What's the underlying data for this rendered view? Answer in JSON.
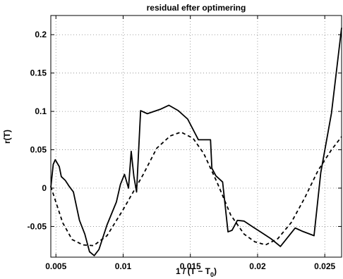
{
  "chart_data": {
    "type": "line",
    "title": "residual efter optimering",
    "xlabel": "1 / (T − T",
    "xlabel_sub": "0",
    "xlabel_end": ")",
    "ylabel": "r(T)",
    "xlim": [
      0.00462,
      0.02625
    ],
    "ylim": [
      -0.09,
      0.225
    ],
    "grid": true,
    "x_ticks": [
      {
        "value": 0.005,
        "label": "0.005"
      },
      {
        "value": 0.01,
        "label": "0.01"
      },
      {
        "value": 0.015,
        "label": "0.015"
      },
      {
        "value": 0.02,
        "label": "0.02"
      },
      {
        "value": 0.025,
        "label": "0.025"
      }
    ],
    "y_ticks": [
      {
        "value": -0.05,
        "label": "-0.05"
      },
      {
        "value": 0,
        "label": "0"
      },
      {
        "value": 0.05,
        "label": "0.05"
      },
      {
        "value": 0.1,
        "label": "0.1"
      },
      {
        "value": 0.15,
        "label": "0.15"
      },
      {
        "value": 0.2,
        "label": "0.2"
      }
    ],
    "series": [
      {
        "style": "solid",
        "color": "#000000",
        "points": [
          [
            0.00462,
            0.001
          ],
          [
            0.0048,
            0.031
          ],
          [
            0.00495,
            0.037
          ],
          [
            0.00525,
            0.028
          ],
          [
            0.0054,
            0.015
          ],
          [
            0.0057,
            0.01
          ],
          [
            0.006,
            0.002
          ],
          [
            0.0063,
            -0.005
          ],
          [
            0.00675,
            -0.042
          ],
          [
            0.00715,
            -0.06
          ],
          [
            0.0075,
            -0.083
          ],
          [
            0.00785,
            -0.088
          ],
          [
            0.0082,
            -0.08
          ],
          [
            0.0088,
            -0.048
          ],
          [
            0.0095,
            -0.018
          ],
          [
            0.0098,
            0.005
          ],
          [
            0.0101,
            0.018
          ],
          [
            0.0104,
            0.0
          ],
          [
            0.0106,
            0.048
          ],
          [
            0.0108,
            0.015
          ],
          [
            0.011,
            -0.005
          ],
          [
            0.0113,
            0.101
          ],
          [
            0.0118,
            0.097
          ],
          [
            0.0128,
            0.103
          ],
          [
            0.0134,
            0.108
          ],
          [
            0.0141,
            0.101
          ],
          [
            0.0148,
            0.09
          ],
          [
            0.0156,
            0.063
          ],
          [
            0.0165,
            0.063
          ],
          [
            0.0166,
            0.026
          ],
          [
            0.0169,
            0.016
          ],
          [
            0.0174,
            0.008
          ],
          [
            0.0178,
            -0.057
          ],
          [
            0.0181,
            -0.055
          ],
          [
            0.0185,
            -0.042
          ],
          [
            0.019,
            -0.043
          ],
          [
            0.0196,
            -0.05
          ],
          [
            0.0203,
            -0.058
          ],
          [
            0.021,
            -0.066
          ],
          [
            0.0217,
            -0.076
          ],
          [
            0.0228,
            -0.052
          ],
          [
            0.0233,
            -0.056
          ],
          [
            0.0242,
            -0.062
          ],
          [
            0.0247,
            0.02
          ],
          [
            0.0255,
            0.098
          ],
          [
            0.02625,
            0.209
          ]
        ]
      },
      {
        "style": "dashed",
        "color": "#000000",
        "points": [
          [
            0.00462,
            0.002
          ],
          [
            0.0055,
            -0.045
          ],
          [
            0.0062,
            -0.067
          ],
          [
            0.007,
            -0.074
          ],
          [
            0.0078,
            -0.075
          ],
          [
            0.0088,
            -0.062
          ],
          [
            0.01,
            -0.028
          ],
          [
            0.0115,
            0.018
          ],
          [
            0.0125,
            0.052
          ],
          [
            0.0135,
            0.068
          ],
          [
            0.0143,
            0.073
          ],
          [
            0.0152,
            0.065
          ],
          [
            0.016,
            0.045
          ],
          [
            0.017,
            0.007
          ],
          [
            0.018,
            -0.035
          ],
          [
            0.019,
            -0.06
          ],
          [
            0.0198,
            -0.07
          ],
          [
            0.0206,
            -0.074
          ],
          [
            0.0215,
            -0.066
          ],
          [
            0.0225,
            -0.045
          ],
          [
            0.0235,
            -0.013
          ],
          [
            0.0245,
            0.023
          ],
          [
            0.0255,
            0.05
          ],
          [
            0.02625,
            0.067
          ]
        ]
      }
    ]
  }
}
